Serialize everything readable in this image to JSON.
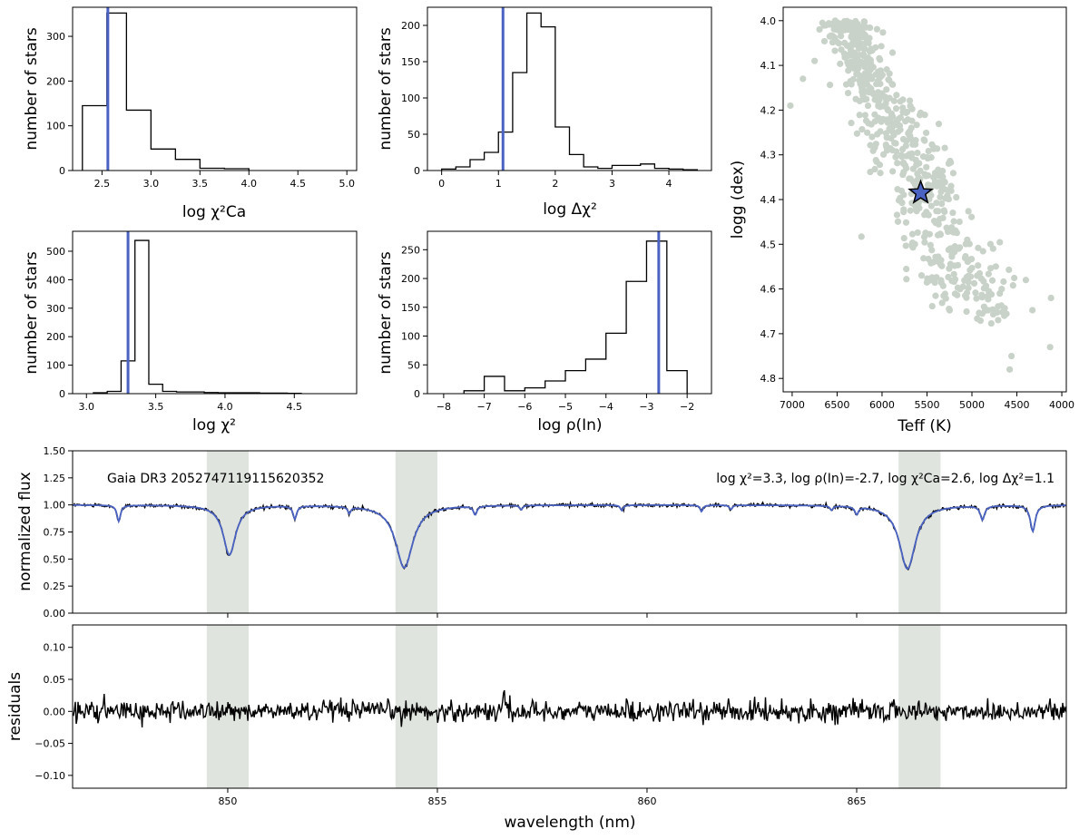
{
  "colors": {
    "marker": "#4a62c2",
    "scatter": "#c8d2c8",
    "shade": "#dfe4df",
    "hist": "#000000",
    "model": "#4a62c2",
    "data": "#000000"
  },
  "chart_data": [
    {
      "id": "hchica",
      "type": "bar",
      "title": "",
      "xlabel": "log χ²Ca",
      "ylabel": "number of stars",
      "xlim": [
        2.2,
        5.1
      ],
      "ylim": [
        0,
        365
      ],
      "xticks": [
        "2.5",
        "3.0",
        "3.5",
        "4.0",
        "4.5",
        "5.0"
      ],
      "yticks": [
        "0",
        "100",
        "200",
        "300"
      ],
      "bin_edges": [
        2.3,
        2.55,
        2.75,
        3.0,
        3.25,
        3.5,
        3.75,
        4.0
      ],
      "values": [
        145,
        352,
        135,
        48,
        25,
        5,
        4
      ],
      "marker": 2.56
    },
    {
      "id": "hdchi",
      "type": "bar",
      "title": "",
      "xlabel": "log Δχ²",
      "ylabel": "number of stars",
      "xlim": [
        -0.25,
        4.75
      ],
      "ylim": [
        0,
        225
      ],
      "xticks": [
        "0",
        "1",
        "2",
        "3",
        "4"
      ],
      "yticks": [
        "0",
        "50",
        "100",
        "150",
        "200"
      ],
      "bin_edges": [
        0,
        0.25,
        0.5,
        0.75,
        1.0,
        1.25,
        1.5,
        1.75,
        2.0,
        2.25,
        2.5,
        2.75,
        3.0,
        3.25,
        3.5,
        3.75,
        4.0,
        4.25,
        4.5
      ],
      "values": [
        2,
        5,
        15,
        25,
        53,
        135,
        217,
        198,
        60,
        22,
        5,
        3,
        7,
        7,
        9,
        3,
        2,
        1
      ],
      "marker": 1.08
    },
    {
      "id": "hchi",
      "type": "bar",
      "title": "",
      "xlabel": "log χ²",
      "ylabel": "number of stars",
      "xlim": [
        2.9,
        4.95
      ],
      "ylim": [
        0,
        570
      ],
      "xticks": [
        "3.0",
        "3.5",
        "4.0",
        "4.5"
      ],
      "yticks": [
        "0",
        "100",
        "200",
        "300",
        "400",
        "500"
      ],
      "bin_edges": [
        3.05,
        3.15,
        3.25,
        3.35,
        3.45,
        3.55,
        3.65,
        3.75,
        3.85,
        3.95,
        4.05,
        4.15,
        4.25,
        4.35,
        4.45,
        4.55
      ],
      "values": [
        3,
        8,
        115,
        538,
        33,
        8,
        6,
        6,
        4,
        3,
        3,
        3,
        2,
        2,
        1
      ],
      "marker": 3.3
    },
    {
      "id": "hrho",
      "type": "bar",
      "title": "",
      "xlabel": "log ρ(In)",
      "ylabel": "number of stars",
      "xlim": [
        -8.4,
        -1.4
      ],
      "ylim": [
        0,
        282
      ],
      "xticks": [
        "−8",
        "−7",
        "−6",
        "−5",
        "−4",
        "−3",
        "−2"
      ],
      "yticks": [
        "0",
        "50",
        "100",
        "150",
        "200",
        "250"
      ],
      "bin_edges": [
        -7.5,
        -7.0,
        -6.5,
        -6.0,
        -5.5,
        -5.0,
        -4.5,
        -4.0,
        -3.5,
        -3.0,
        -2.5,
        -2.0
      ],
      "values": [
        5,
        30,
        5,
        10,
        22,
        40,
        60,
        105,
        195,
        265,
        40
      ],
      "marker": -2.7
    },
    {
      "id": "kiel",
      "type": "scatter",
      "title": "",
      "xlabel": "Teff (K)",
      "ylabel": "logg (dex)",
      "xlim": [
        7100,
        3950
      ],
      "ylim": [
        4.83,
        3.97
      ],
      "xticks": [
        "7000",
        "6500",
        "6000",
        "5500",
        "5000",
        "4500",
        "4000"
      ],
      "yticks": [
        "4.0",
        "4.1",
        "4.2",
        "4.3",
        "4.4",
        "4.5",
        "4.6",
        "4.7",
        "4.8"
      ],
      "star": [
        5570,
        4.385
      ],
      "outliers": [
        [
          7020,
          4.19
        ],
        [
          6880,
          4.13
        ],
        [
          4400,
          4.58
        ],
        [
          4120,
          4.62
        ],
        [
          4130,
          4.73
        ],
        [
          4560,
          4.75
        ],
        [
          4580,
          4.78
        ],
        [
          4640,
          4.66
        ],
        [
          4690,
          4.61
        ],
        [
          6750,
          4.09
        ]
      ]
    },
    {
      "id": "spec",
      "type": "line",
      "title": "Gaia DR3 2052747119115620352",
      "annotation": "log χ²=3.3, log ρ(In)=-2.7, log χ²Ca=2.6, log Δχ²=1.1",
      "xlabel": "",
      "ylabel": "normalized flux",
      "xlim": [
        846.3,
        870.0
      ],
      "ylim": [
        0.0,
        1.5
      ],
      "xticks": [
        "850",
        "855",
        "860",
        "865"
      ],
      "yticks": [
        "0.00",
        "0.25",
        "0.50",
        "0.75",
        "1.00",
        "1.25",
        "1.50"
      ],
      "shaded": [
        [
          849.5,
          850.5
        ],
        [
          854.0,
          855.0
        ],
        [
          866.0,
          867.0
        ]
      ],
      "lines": [
        [
          850.04,
          0.46,
          0.18
        ],
        [
          854.21,
          0.58,
          0.25
        ],
        [
          866.21,
          0.59,
          0.23
        ],
        [
          847.4,
          0.15,
          0.05
        ],
        [
          851.6,
          0.12,
          0.05
        ],
        [
          852.9,
          0.06,
          0.04
        ],
        [
          855.9,
          0.08,
          0.05
        ],
        [
          857.0,
          0.04,
          0.04
        ],
        [
          859.4,
          0.05,
          0.04
        ],
        [
          861.3,
          0.06,
          0.04
        ],
        [
          862.0,
          0.04,
          0.04
        ],
        [
          864.4,
          0.04,
          0.04
        ],
        [
          865.0,
          0.07,
          0.05
        ],
        [
          868.0,
          0.13,
          0.06
        ],
        [
          869.2,
          0.24,
          0.07
        ]
      ]
    },
    {
      "id": "resid",
      "type": "line",
      "title": "",
      "xlabel": "wavelength (nm)",
      "ylabel": "residuals",
      "xlim": [
        846.3,
        870.0
      ],
      "ylim": [
        -0.12,
        0.135
      ],
      "xticks": [
        "850",
        "855",
        "860",
        "865"
      ],
      "yticks": [
        "−0.10",
        "−0.05",
        "0.00",
        "0.05",
        "0.10"
      ],
      "shaded": [
        [
          849.5,
          850.5
        ],
        [
          854.0,
          855.0
        ],
        [
          866.0,
          867.0
        ]
      ],
      "noise_sigma": 0.008
    }
  ]
}
